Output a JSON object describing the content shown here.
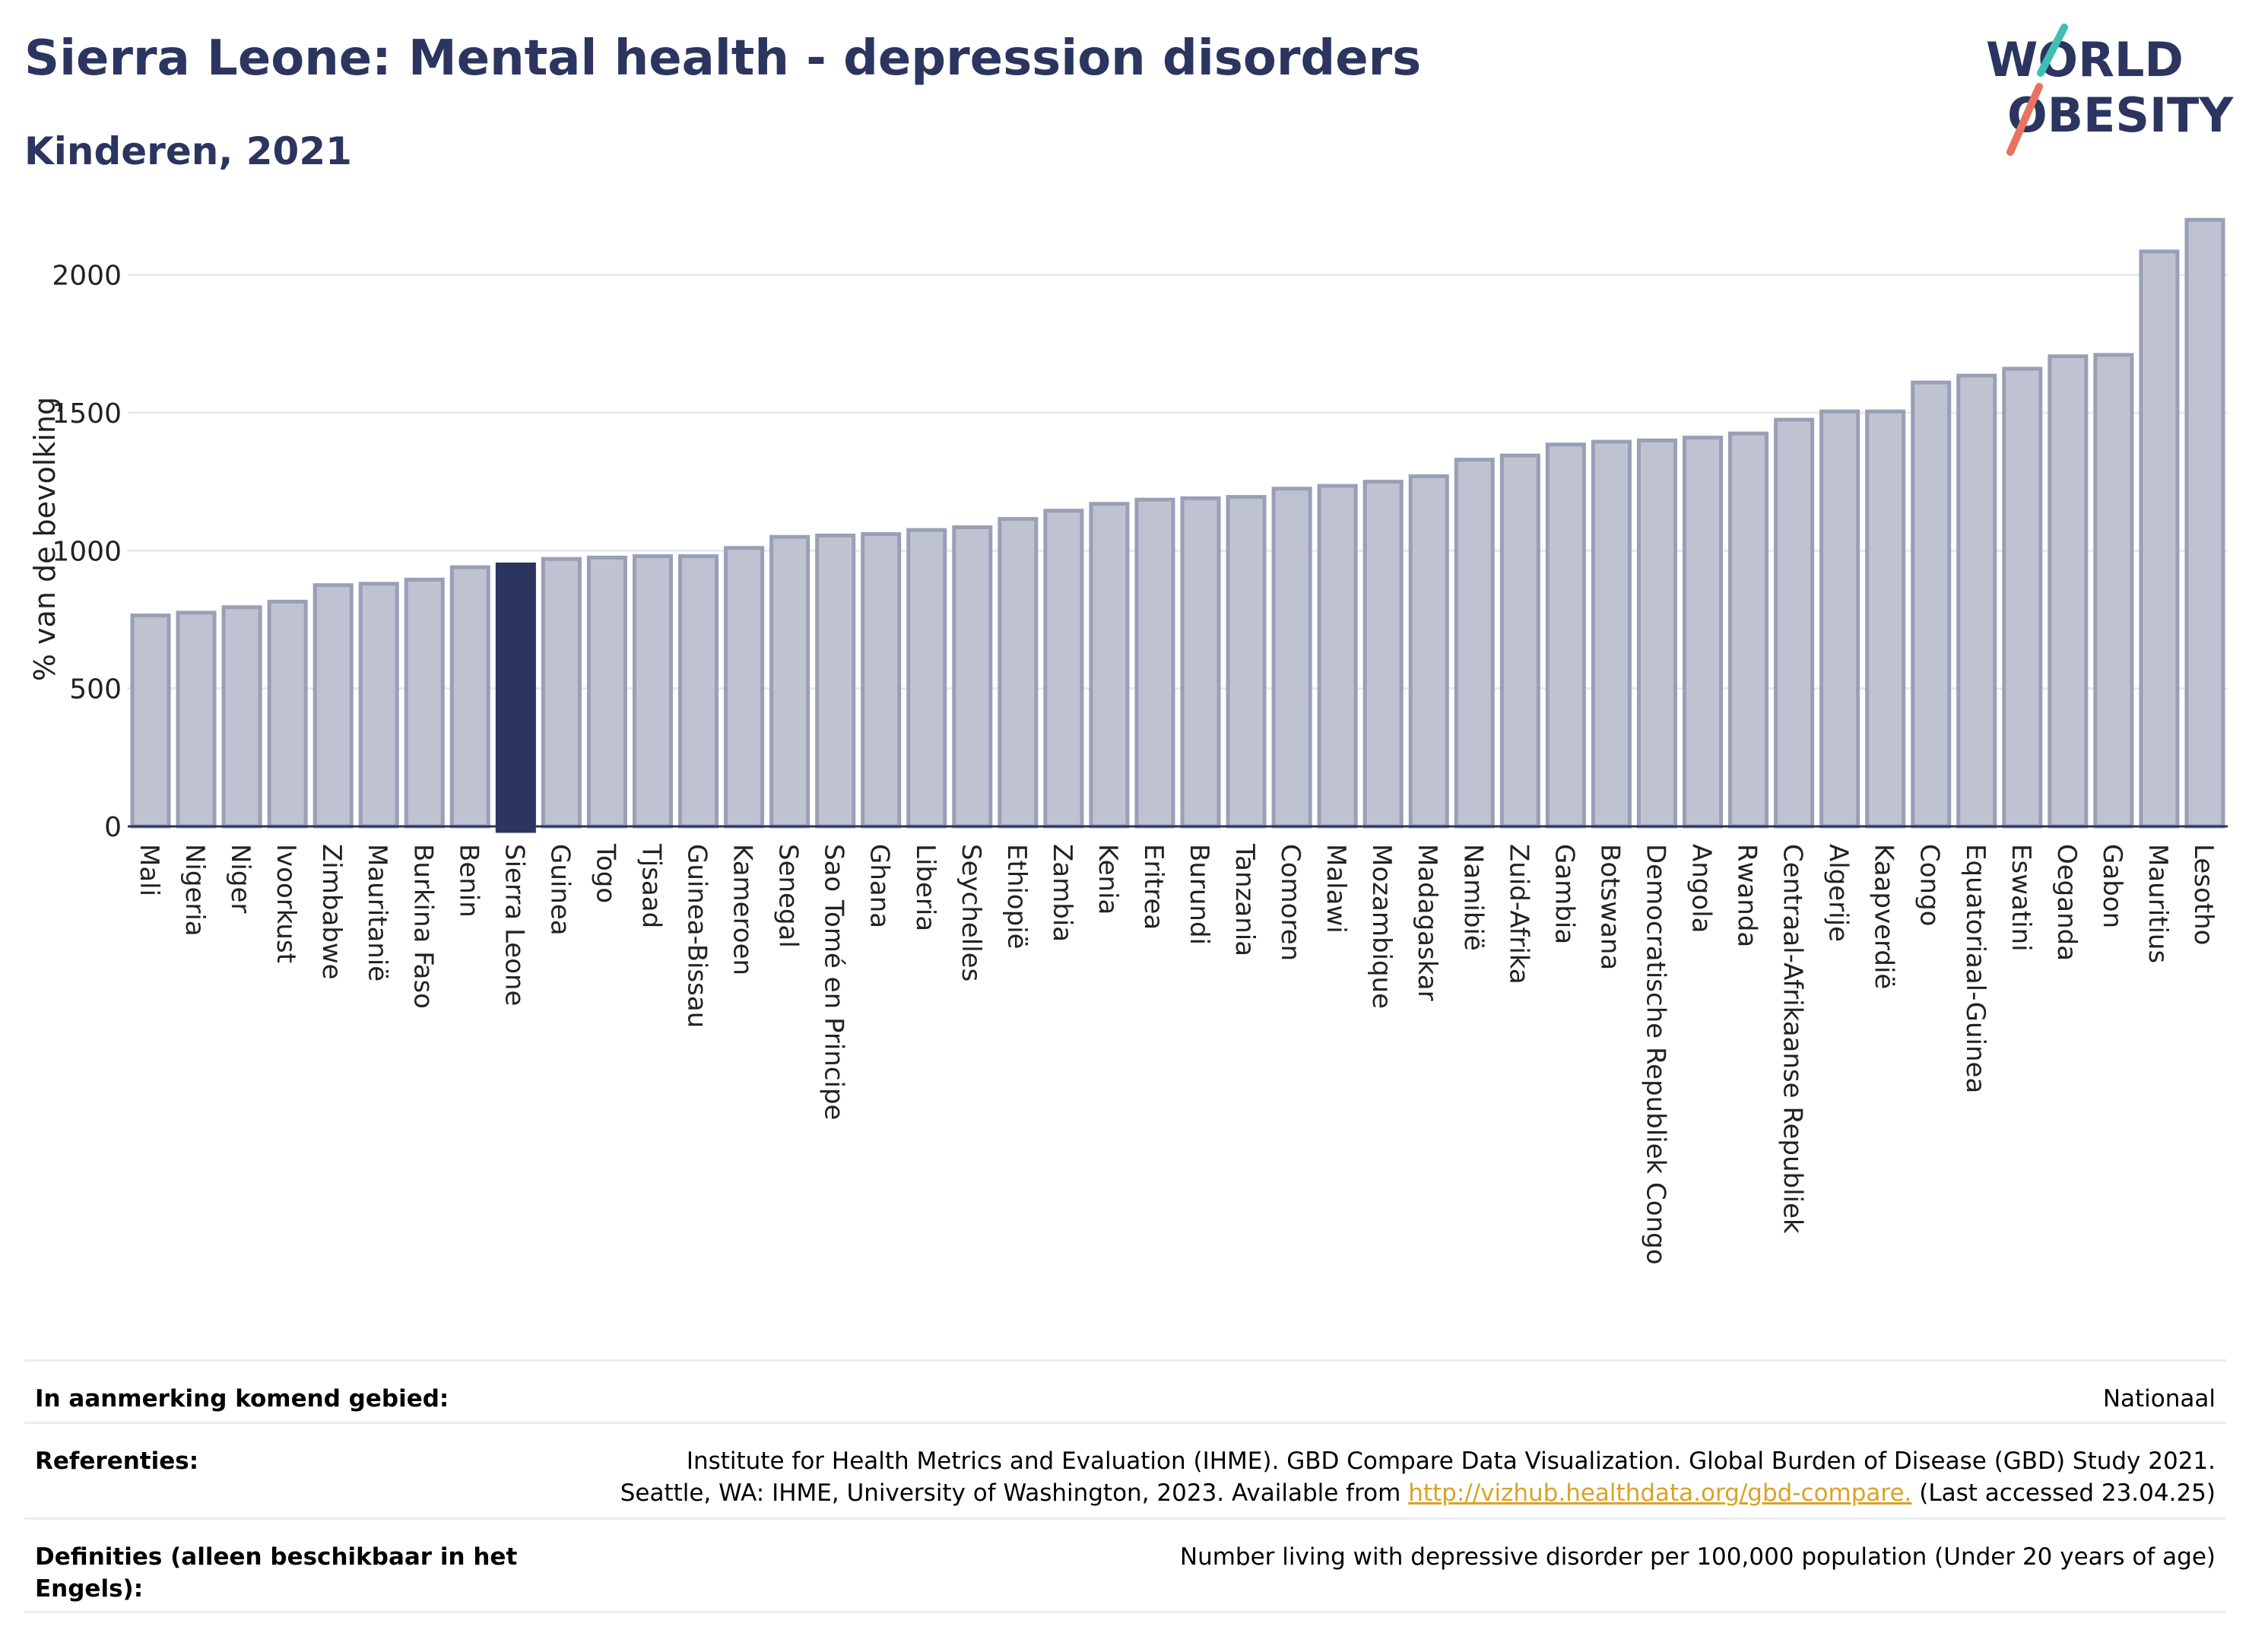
{
  "header": {
    "title": "Sierra Leone: Mental health - depression disorders",
    "subtitle": "Kinderen, 2021",
    "logo_line1": "WORLD",
    "logo_line2": "OBESITY"
  },
  "colors": {
    "title": "#2b3560",
    "bar": "#bfc2d0",
    "bar_stroke": "#9a9fb7",
    "highlight": "#2b3560",
    "logo_teal": "#3fbfb3",
    "logo_coral": "#e8735f",
    "link": "#d9a326"
  },
  "chart_data": {
    "type": "bar",
    "ylabel": "% van de bevolking",
    "xlabel": "",
    "ylim": [
      0,
      2250
    ],
    "yticks": [
      0,
      500,
      1000,
      1500,
      2000
    ],
    "grid": true,
    "highlight": "Sierra Leone",
    "categories": [
      "Mali",
      "Nigeria",
      "Niger",
      "Ivoorkust",
      "Zimbabwe",
      "Mauritanië",
      "Burkina Faso",
      "Benin",
      "Sierra Leone",
      "Guinea",
      "Togo",
      "Tjsaad",
      "Guinea-Bissau",
      "Kameroen",
      "Senegal",
      "Sao Tomé en Principe",
      "Ghana",
      "Liberia",
      "Seychelles",
      "Ethiopië",
      "Zambia",
      "Kenia",
      "Eritrea",
      "Burundi",
      "Tanzania",
      "Comoren",
      "Malawi",
      "Mozambique",
      "Madagaskar",
      "Namibië",
      "Zuid-Afrika",
      "Gambia",
      "Botswana",
      "Democratische Republiek Congo",
      "Angola",
      "Rwanda",
      "Centraal-Afrikaanse Republiek",
      "Algerije",
      "Kaapverdië",
      "Congo",
      "Equatoriaal-Guinea",
      "Eswatini",
      "Oeganda",
      "Gabon",
      "Mauritius",
      "Lesotho"
    ],
    "values": [
      765,
      775,
      795,
      815,
      875,
      880,
      895,
      940,
      950,
      970,
      975,
      980,
      980,
      1010,
      1050,
      1055,
      1060,
      1075,
      1085,
      1115,
      1145,
      1170,
      1185,
      1190,
      1195,
      1225,
      1235,
      1250,
      1270,
      1330,
      1345,
      1385,
      1395,
      1400,
      1410,
      1425,
      1475,
      1505,
      1505,
      1610,
      1635,
      1660,
      1705,
      1710,
      2085,
      2200
    ]
  },
  "info": {
    "area_label": "In aanmerking komend gebied:",
    "area_value": "Nationaal",
    "ref_label": "Referenties:",
    "ref_line1": "Institute for Health Metrics and Evaluation (IHME). GBD Compare Data Visualization. Global Burden of Disease (GBD) Study 2021.",
    "ref_line2_pre": "Seattle, WA: IHME, University of Washington, 2023. Available from ",
    "ref_link": "http://vizhub.healthdata.org/gbd-compare.",
    "ref_line2_post": " (Last accessed 23.04.25)",
    "def_label": "Definities (alleen beschikbaar in het Engels):",
    "def_value": "Number living with depressive disorder per 100,000 population (Under 20 years of age)"
  }
}
